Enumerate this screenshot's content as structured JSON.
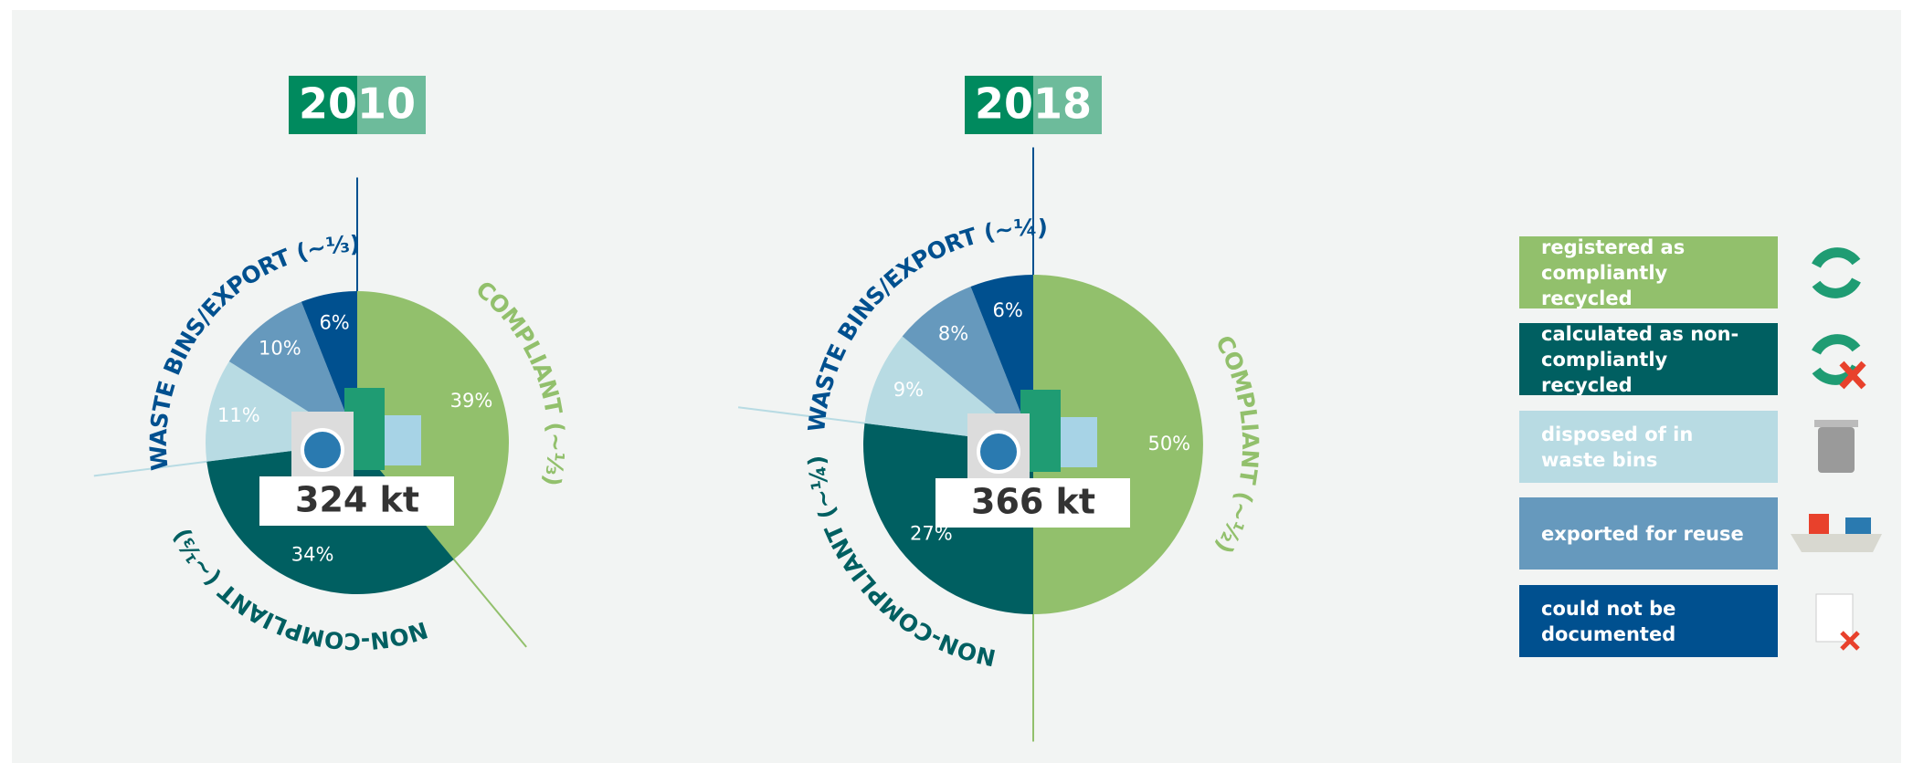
{
  "chart_data": [
    {
      "type": "pie",
      "title": "2010",
      "values": [
        39,
        34,
        11,
        10,
        6
      ],
      "value_labels": [
        "39%",
        "34%",
        "11%",
        "10%",
        "6%"
      ],
      "colors": [
        "#92c06c",
        "#005f61",
        "#b8dbe3",
        "#6699bd",
        "#00508f"
      ],
      "total_label": "324 kt",
      "arc_labels": [
        {
          "text": "COMPLIANT (~⅓)",
          "color": "#92c06c"
        },
        {
          "text": "NON-COMPLIANT (~⅓)",
          "color": "#005f61"
        },
        {
          "text": "WASTE BINS/EXPORT (~⅓)",
          "color": "#00508f"
        }
      ]
    },
    {
      "type": "pie",
      "title": "2018",
      "values": [
        50,
        27,
        9,
        8,
        6
      ],
      "value_labels": [
        "50%",
        "27%",
        "9%",
        "8%",
        "6%"
      ],
      "colors": [
        "#92c06c",
        "#005f61",
        "#b8dbe3",
        "#6699bd",
        "#00508f"
      ],
      "total_label": "366 kt",
      "arc_labels": [
        {
          "text": "COMPLIANT (~½)",
          "color": "#92c06c"
        },
        {
          "text": "NON-COMPLIANT (~¼)",
          "color": "#005f61"
        },
        {
          "text": "WASTE BINS/EXPORT (~¼)",
          "color": "#00508f"
        }
      ]
    }
  ],
  "legend": {
    "items": [
      "registered as compliantly recycled",
      "calculated as non-compliantly recycled",
      "disposed of in waste bins",
      "exported for reuse",
      "could not be documented"
    ],
    "colors": [
      "#92c06c",
      "#005f61",
      "#b8dbe3",
      "#6699bd",
      "#00508f"
    ]
  }
}
